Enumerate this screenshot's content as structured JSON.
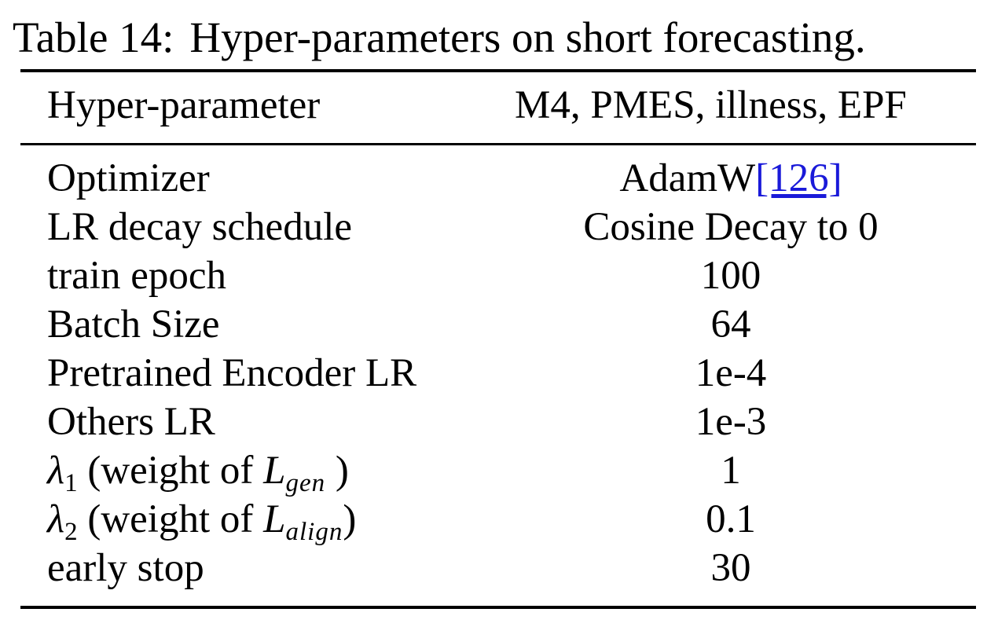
{
  "caption": {
    "label": "Table 14:",
    "text": "Hyper-parameters on short forecasting."
  },
  "header": {
    "col1": "Hyper-parameter",
    "col2": "M4, PMES, illness, EPF"
  },
  "rows": [
    {
      "label": "Optimizer",
      "value": "AdamW",
      "citation": "[126]"
    },
    {
      "label": "LR decay schedule",
      "value": "Cosine Decay to 0"
    },
    {
      "label": "train epoch",
      "value": "100"
    },
    {
      "label": "Batch Size",
      "value": "64"
    },
    {
      "label": "Pretrained Encoder LR",
      "value": "1e-4"
    },
    {
      "label": "Others LR",
      "value": "1e-3"
    },
    {
      "label_symbol": "λ",
      "label_symbol_sub": "1",
      "label_text": "(weight of",
      "label_loss": "L",
      "label_loss_sub": "gen",
      "label_close": ")",
      "value": "1"
    },
    {
      "label_symbol": "λ",
      "label_symbol_sub": "2",
      "label_text": "(weight of",
      "label_loss": "L",
      "label_loss_sub": "align",
      "label_close": ")",
      "value": "0.1"
    },
    {
      "label": "early stop",
      "value": "30"
    }
  ]
}
